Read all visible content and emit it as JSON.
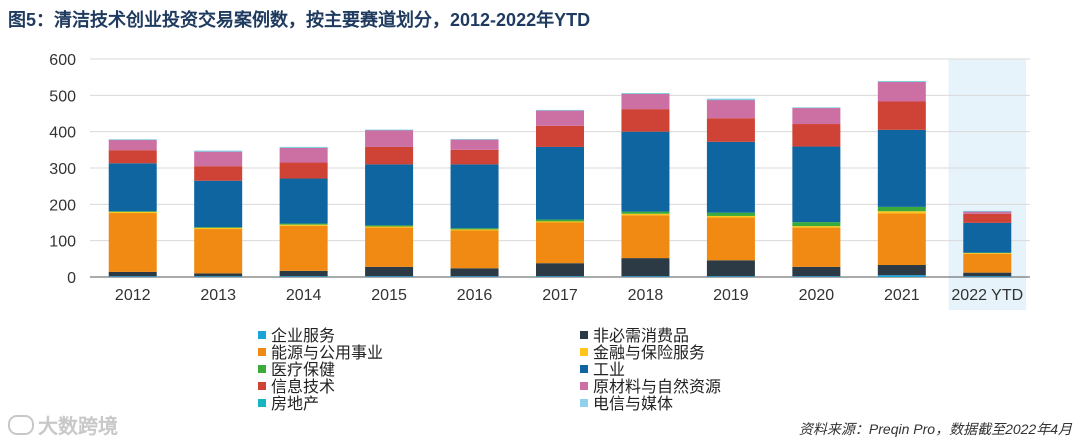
{
  "title": "图5：清洁技术创业投资交易案例数，按主要赛道划分，2012-2022年YTD",
  "source": "资料来源：Preqin Pro，数据截至2022年4月",
  "watermark": "大数跨境",
  "chart_data": {
    "type": "bar",
    "stacked": true,
    "title": "清洁技术创业投资交易案例数，按主要赛道划分，2012-2022年YTD",
    "ylim": [
      0,
      600
    ],
    "yticks": [
      0,
      100,
      200,
      300,
      400,
      500,
      600
    ],
    "grid": true,
    "legend_position": "bottom",
    "highlight_category": "2022 YTD",
    "categories": [
      "2012",
      "2013",
      "2014",
      "2015",
      "2016",
      "2017",
      "2018",
      "2019",
      "2020",
      "2021",
      "2022 YTD"
    ],
    "series": [
      {
        "name": "企业服务",
        "color": "#1aa3d9",
        "values": [
          2,
          2,
          2,
          2,
          2,
          2,
          2,
          2,
          2,
          5,
          2
        ]
      },
      {
        "name": "非必需消费品",
        "color": "#2b3a44",
        "values": [
          12,
          8,
          15,
          26,
          22,
          36,
          50,
          44,
          26,
          28,
          10
        ]
      },
      {
        "name": "能源与公用事业",
        "color": "#f08a12",
        "values": [
          162,
          122,
          124,
          108,
          104,
          112,
          118,
          118,
          108,
          142,
          52
        ]
      },
      {
        "name": "金融与保险服务",
        "color": "#ffc61a",
        "values": [
          3,
          3,
          3,
          3,
          3,
          3,
          4,
          4,
          4,
          6,
          2
        ]
      },
      {
        "name": "医疗保健",
        "color": "#3aab3a",
        "values": [
          2,
          2,
          3,
          3,
          3,
          5,
          6,
          9,
          11,
          12,
          1
        ]
      },
      {
        "name": "工业",
        "color": "#0e65a0",
        "values": [
          132,
          128,
          124,
          168,
          176,
          200,
          220,
          195,
          208,
          212,
          82
        ]
      },
      {
        "name": "信息技术",
        "color": "#cf4236",
        "values": [
          36,
          40,
          44,
          48,
          40,
          58,
          62,
          65,
          62,
          78,
          25
        ]
      },
      {
        "name": "原材料与自然资源",
        "color": "#cc6fa3",
        "values": [
          28,
          40,
          40,
          46,
          28,
          42,
          42,
          50,
          44,
          54,
          6
        ]
      },
      {
        "name": "房地产",
        "color": "#16b5bf",
        "values": [
          1,
          1,
          1,
          1,
          1,
          1,
          1,
          1,
          1,
          1,
          1
        ]
      },
      {
        "name": "电信与媒体",
        "color": "#8fd0ea",
        "values": [
          1,
          2,
          2,
          1,
          1,
          1,
          1,
          3,
          1,
          1,
          1
        ]
      }
    ]
  }
}
